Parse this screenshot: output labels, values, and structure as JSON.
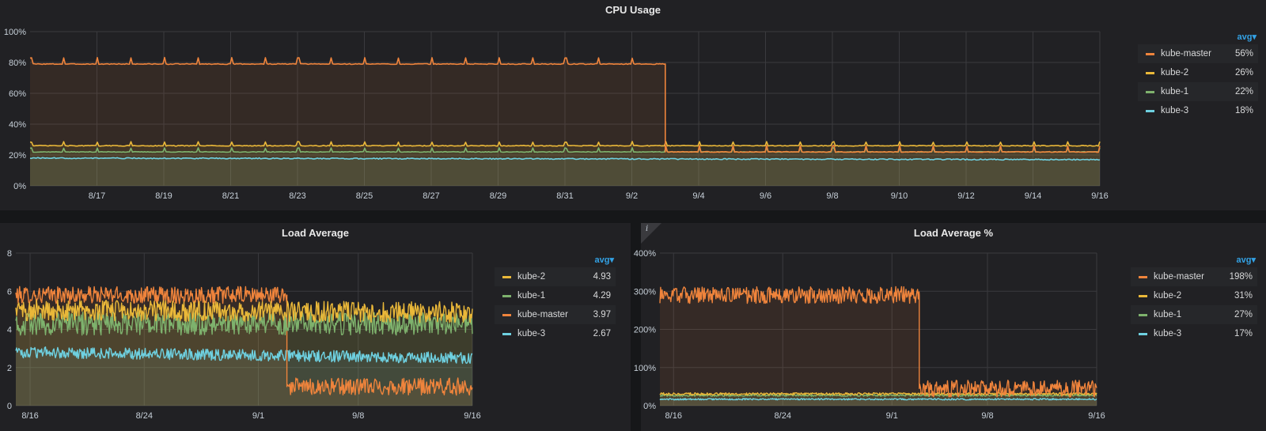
{
  "colors": {
    "kube_master": "#ef843c",
    "kube_2": "#eab839",
    "kube_1": "#7eb26d",
    "kube_3": "#6ed0e0",
    "grid": "#3a3a3e",
    "axis_text": "#c7d0d9",
    "legend_header": "#33a2e5"
  },
  "panels": [
    {
      "title": "CPU Usage",
      "legend": {
        "header": "avg▾",
        "items": [
          {
            "name": "kube-master",
            "value": "56%",
            "color": "#ef843c"
          },
          {
            "name": "kube-2",
            "value": "26%",
            "color": "#eab839"
          },
          {
            "name": "kube-1",
            "value": "22%",
            "color": "#7eb26d"
          },
          {
            "name": "kube-3",
            "value": "18%",
            "color": "#6ed0e0"
          }
        ]
      }
    },
    {
      "title": "Load Average",
      "legend": {
        "header": "avg▾",
        "items": [
          {
            "name": "kube-2",
            "value": "4.93",
            "color": "#eab839"
          },
          {
            "name": "kube-1",
            "value": "4.29",
            "color": "#7eb26d"
          },
          {
            "name": "kube-master",
            "value": "3.97",
            "color": "#ef843c"
          },
          {
            "name": "kube-3",
            "value": "2.67",
            "color": "#6ed0e0"
          }
        ]
      }
    },
    {
      "title": "Load Average %",
      "info_icon": "i",
      "legend": {
        "header": "avg▾",
        "items": [
          {
            "name": "kube-master",
            "value": "198%",
            "color": "#ef843c"
          },
          {
            "name": "kube-2",
            "value": "31%",
            "color": "#eab839"
          },
          {
            "name": "kube-1",
            "value": "27%",
            "color": "#7eb26d"
          },
          {
            "name": "kube-3",
            "value": "17%",
            "color": "#6ed0e0"
          }
        ]
      }
    }
  ],
  "chart_data": [
    {
      "type": "area",
      "title": "CPU Usage",
      "x_unit": "day",
      "x_range": [
        "8/15",
        "9/16"
      ],
      "x_ticks": [
        "8/17",
        "8/19",
        "8/21",
        "8/23",
        "8/25",
        "8/27",
        "8/29",
        "8/31",
        "9/2",
        "9/4",
        "9/6",
        "9/8",
        "9/10",
        "9/12",
        "9/14",
        "9/16"
      ],
      "y_ticks": [
        "0%",
        "20%",
        "40%",
        "60%",
        "80%",
        "100%"
      ],
      "ylim": [
        0,
        100
      ],
      "grid": true,
      "legend_position": "right",
      "series": [
        {
          "name": "kube-master",
          "x": [
            "8/15",
            "9/3",
            "9/3",
            "9/16"
          ],
          "values": [
            79,
            79,
            22,
            22
          ]
        },
        {
          "name": "kube-2",
          "x": [
            "8/15",
            "9/16"
          ],
          "values": [
            26,
            26
          ]
        },
        {
          "name": "kube-1",
          "x": [
            "8/15",
            "9/16"
          ],
          "values": [
            22,
            22
          ]
        },
        {
          "name": "kube-3",
          "x": [
            "8/15",
            "9/16"
          ],
          "values": [
            18,
            17
          ]
        }
      ]
    },
    {
      "type": "area",
      "title": "Load Average",
      "x_range": [
        "8/15",
        "9/16"
      ],
      "x_ticks": [
        "8/16",
        "8/24",
        "9/1",
        "9/8",
        "9/16"
      ],
      "y_ticks": [
        "0",
        "2",
        "4",
        "6",
        "8"
      ],
      "ylim": [
        0,
        8
      ],
      "grid": true,
      "legend_position": "right",
      "series": [
        {
          "name": "kube-2",
          "x": [
            "8/15",
            "9/16"
          ],
          "values": [
            5.0,
            4.9
          ]
        },
        {
          "name": "kube-1",
          "x": [
            "8/15",
            "9/16"
          ],
          "values": [
            4.3,
            4.3
          ]
        },
        {
          "name": "kube-master",
          "x": [
            "8/15",
            "9/3",
            "9/3",
            "9/16"
          ],
          "values": [
            5.8,
            5.8,
            1.0,
            1.0
          ]
        },
        {
          "name": "kube-3",
          "x": [
            "8/15",
            "9/16"
          ],
          "values": [
            2.8,
            2.5
          ]
        }
      ]
    },
    {
      "type": "area",
      "title": "Load Average %",
      "x_range": [
        "8/15",
        "9/16"
      ],
      "x_ticks": [
        "8/16",
        "8/24",
        "9/1",
        "9/8",
        "9/16"
      ],
      "y_ticks": [
        "0%",
        "100%",
        "200%",
        "300%",
        "400%"
      ],
      "ylim": [
        0,
        400
      ],
      "grid": true,
      "legend_position": "right",
      "series": [
        {
          "name": "kube-master",
          "x": [
            "8/15",
            "9/3",
            "9/3",
            "9/16"
          ],
          "values": [
            290,
            290,
            45,
            45
          ]
        },
        {
          "name": "kube-2",
          "x": [
            "8/15",
            "9/16"
          ],
          "values": [
            31,
            31
          ]
        },
        {
          "name": "kube-1",
          "x": [
            "8/15",
            "9/16"
          ],
          "values": [
            27,
            27
          ]
        },
        {
          "name": "kube-3",
          "x": [
            "8/15",
            "9/16"
          ],
          "values": [
            17,
            17
          ]
        }
      ]
    }
  ]
}
